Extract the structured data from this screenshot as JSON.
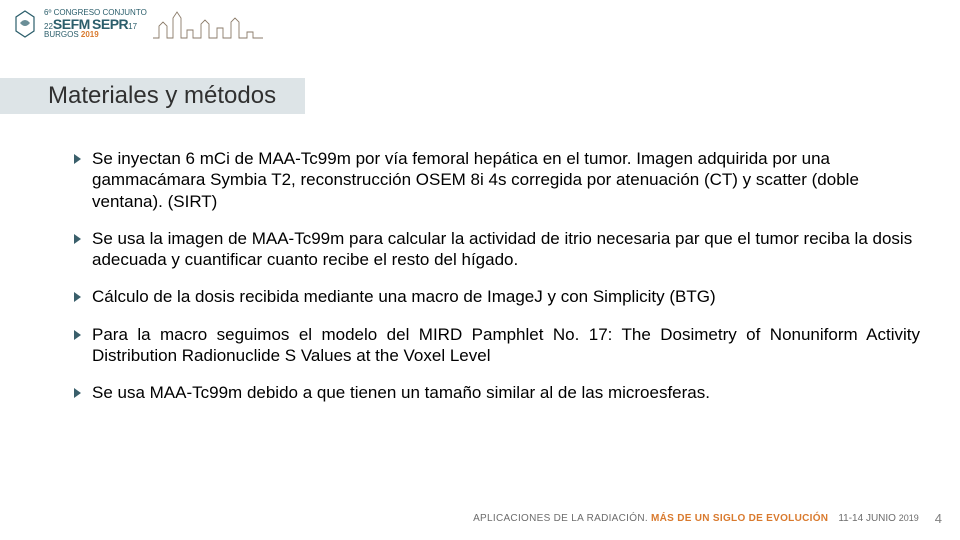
{
  "logo": {
    "line1": "6º CONGRESO CONJUNTO",
    "line2_a": "22",
    "line2_b": "SEFM",
    "line2_c": "SEPR",
    "line2_d": "17",
    "line3_a": "BURGOS",
    "line3_b": "2019"
  },
  "title": "Materiales y métodos",
  "bullets": [
    {
      "text": "Se inyectan 6 mCi de MAA-Tc99m por vía femoral hepática en el tumor. Imagen adquirida por una gammacámara Symbia T2, reconstrucción OSEM 8i 4s corregida por atenuación (CT) y scatter (doble ventana). (SIRT)",
      "justify": false
    },
    {
      "text": "Se usa la imagen de MAA-Tc99m para calcular la actividad de itrio necesaria par que el tumor reciba la dosis adecuada y cuantificar cuanto recibe el resto del hígado.",
      "justify": false
    },
    {
      "text": "Cálculo de la dosis recibida mediante una macro de ImageJ y con Simplicity (BTG)",
      "justify": false
    },
    {
      "text": "Para la macro seguimos el modelo del MIRD Pamphlet No. 17: The Dosimetry of Nonuniform Activity Distribution Radionuclide S Values at the Voxel Level",
      "justify": true
    },
    {
      "text": "Se usa MAA-Tc99m debido a que tienen un tamaño similar al de las microesferas.",
      "justify": false
    }
  ],
  "footer": {
    "tagline_a": "APLICACIONES DE LA RADIACIÓN.",
    "tagline_b": "MÁS DE UN SIGLO DE EVOLUCIÓN",
    "dates": "11-14 JUNIO",
    "year": "2019"
  },
  "page_number": "4",
  "colors": {
    "title_bg": "#426c7a",
    "title_text": "#303030",
    "bullet_marker": "#3a5f6b",
    "accent": "#d97a2e",
    "footer_gray": "#6c6c6c"
  }
}
